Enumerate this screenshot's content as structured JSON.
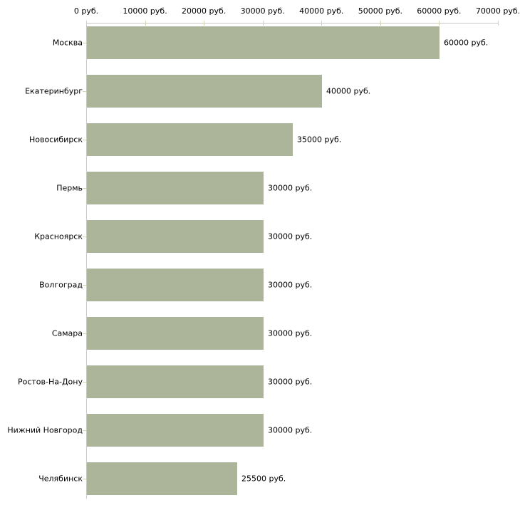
{
  "chart_data": {
    "type": "bar",
    "orientation": "horizontal",
    "title": "",
    "xlabel": "",
    "ylabel": "",
    "categories": [
      "Москва",
      "Екатеринбург",
      "Новосибирск",
      "Пермь",
      "Красноярск",
      "Волгоград",
      "Самара",
      "Ростов-На-Дону",
      "Нижний Новгород",
      "Челябинск"
    ],
    "values": [
      60000,
      40000,
      35000,
      30000,
      30000,
      30000,
      30000,
      30000,
      30000,
      25500
    ],
    "value_labels": [
      "60000 руб.",
      "40000 руб.",
      "35000 руб.",
      "30000 руб.",
      "30000 руб.",
      "30000 руб.",
      "30000 руб.",
      "30000 руб.",
      "30000 руб.",
      "25500 руб."
    ],
    "x_axis": {
      "position": "top",
      "tick_labels": [
        "0 руб.",
        "10000 руб.",
        "20000 руб.",
        "30000 руб.",
        "40000 руб.",
        "50000 руб.",
        "60000 руб.",
        "70000 руб."
      ],
      "tick_values": [
        0,
        10000,
        20000,
        30000,
        40000,
        50000,
        60000,
        70000
      ],
      "xlim": [
        0,
        70000
      ]
    },
    "grid": false,
    "legend": false,
    "colors": {
      "bar_fill": "#acb49a",
      "axis_line": "#c8c8c8",
      "tick_mark": "#d3d5ab",
      "text": "#000000",
      "background": "#ffffff"
    }
  }
}
